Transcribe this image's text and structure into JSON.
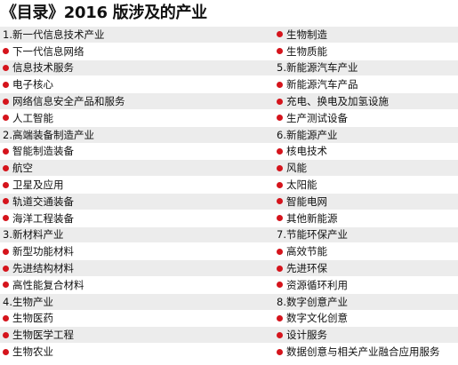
{
  "title": "《目录》2016 版涉及的产业",
  "accent_color": "#d5141c",
  "rows": [
    {
      "left": {
        "text": "1.新一代信息技术产业",
        "bullet": false
      },
      "right": {
        "text": "生物制造",
        "bullet": true
      }
    },
    {
      "left": {
        "text": "下一代信息网络",
        "bullet": true
      },
      "right": {
        "text": "生物质能",
        "bullet": true
      }
    },
    {
      "left": {
        "text": "信息技术服务",
        "bullet": true
      },
      "right": {
        "text": "5.新能源汽车产业",
        "bullet": false
      }
    },
    {
      "left": {
        "text": "电子核心",
        "bullet": true
      },
      "right": {
        "text": "新能源汽车产品",
        "bullet": true
      }
    },
    {
      "left": {
        "text": "网络信息安全产品和服务",
        "bullet": true
      },
      "right": {
        "text": "充电、换电及加氢设施",
        "bullet": true
      }
    },
    {
      "left": {
        "text": "人工智能",
        "bullet": true
      },
      "right": {
        "text": "生产测试设备",
        "bullet": true
      }
    },
    {
      "left": {
        "text": "2.高端装备制造产业",
        "bullet": false
      },
      "right": {
        "text": "6.新能源产业",
        "bullet": false
      }
    },
    {
      "left": {
        "text": "智能制造装备",
        "bullet": true
      },
      "right": {
        "text": "核电技术",
        "bullet": true
      }
    },
    {
      "left": {
        "text": "航空",
        "bullet": true
      },
      "right": {
        "text": "风能",
        "bullet": true
      }
    },
    {
      "left": {
        "text": "卫星及应用",
        "bullet": true
      },
      "right": {
        "text": "太阳能",
        "bullet": true
      }
    },
    {
      "left": {
        "text": "轨道交通装备",
        "bullet": true
      },
      "right": {
        "text": "智能电网",
        "bullet": true
      }
    },
    {
      "left": {
        "text": "海洋工程装备",
        "bullet": true
      },
      "right": {
        "text": "其他新能源",
        "bullet": true
      }
    },
    {
      "left": {
        "text": "3.新材料产业",
        "bullet": false
      },
      "right": {
        "text": "7.节能环保产业",
        "bullet": false
      }
    },
    {
      "left": {
        "text": "新型功能材料",
        "bullet": true
      },
      "right": {
        "text": "高效节能",
        "bullet": true
      }
    },
    {
      "left": {
        "text": "先进结构材料",
        "bullet": true
      },
      "right": {
        "text": "先进环保",
        "bullet": true
      }
    },
    {
      "left": {
        "text": "高性能复合材料",
        "bullet": true
      },
      "right": {
        "text": "资源循环利用",
        "bullet": true
      }
    },
    {
      "left": {
        "text": "4.生物产业",
        "bullet": false
      },
      "right": {
        "text": "8.数字创意产业",
        "bullet": false
      }
    },
    {
      "left": {
        "text": "生物医药",
        "bullet": true
      },
      "right": {
        "text": "数字文化创意",
        "bullet": true
      }
    },
    {
      "left": {
        "text": "生物医学工程",
        "bullet": true
      },
      "right": {
        "text": "设计服务",
        "bullet": true
      }
    },
    {
      "left": {
        "text": "生物农业",
        "bullet": true
      },
      "right": {
        "text": "数据创意与相关产业融合应用服务",
        "bullet": true
      }
    }
  ]
}
